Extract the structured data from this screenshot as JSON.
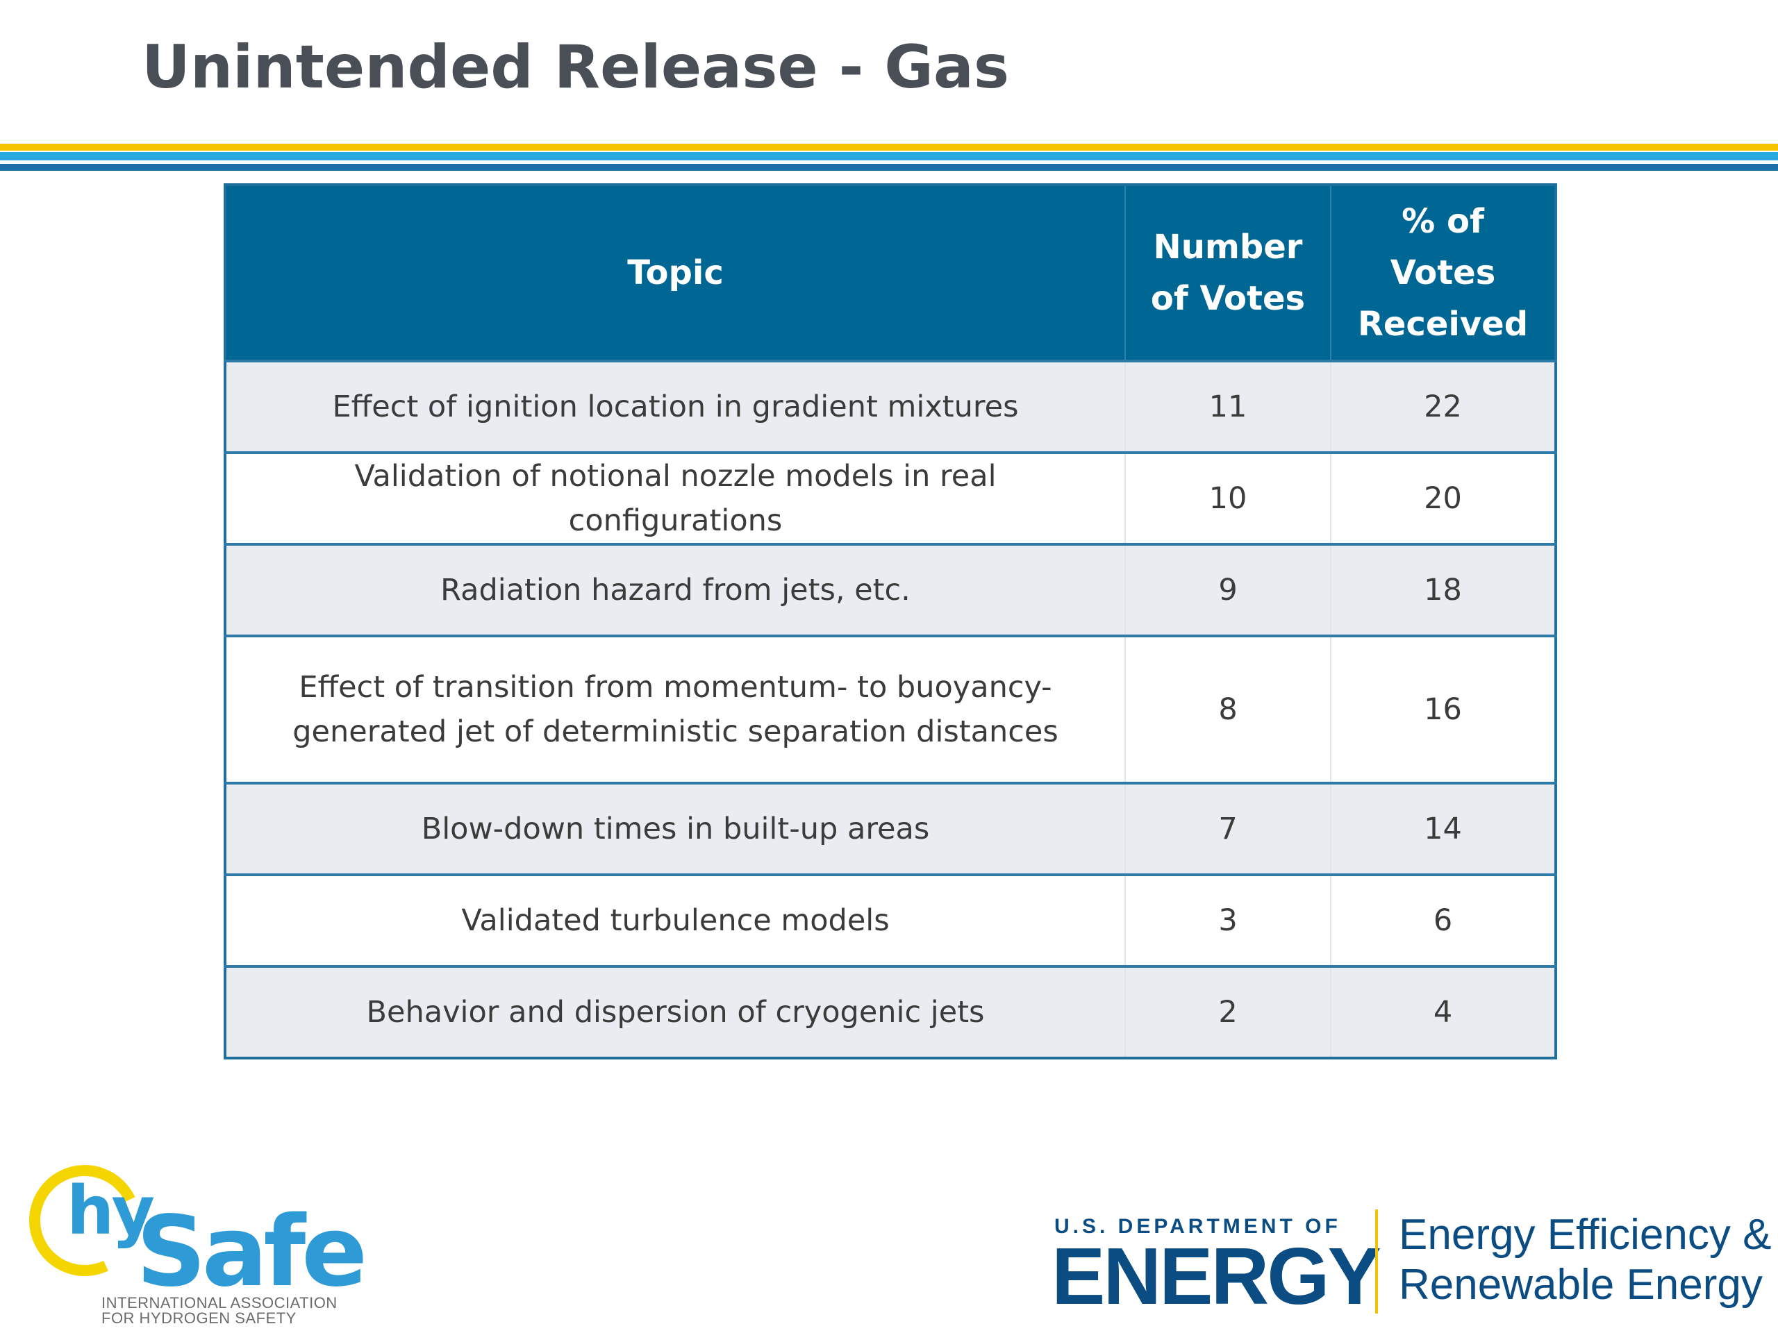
{
  "slide": {
    "title": "Unintended Release - Gas"
  },
  "table": {
    "headers": {
      "topic": "Topic",
      "number_line1": "Number",
      "number_line2": "of Votes",
      "percent_line1": "% of Votes",
      "percent_line2": "Received"
    },
    "rows": [
      {
        "topic": "Effect of ignition location in gradient mixtures",
        "votes": "11",
        "percent": "22"
      },
      {
        "topic": "Validation of notional nozzle models in real configurations",
        "votes": "10",
        "percent": "20"
      },
      {
        "topic": "Radiation hazard from jets, etc.",
        "votes": "9",
        "percent": "18"
      },
      {
        "topic_line1": "Effect of transition from momentum- to buoyancy-",
        "topic_line2": "generated jet of deterministic separation distances",
        "votes": "8",
        "percent": "16"
      },
      {
        "topic": "Blow-down times in built-up areas",
        "votes": "7",
        "percent": "14"
      },
      {
        "topic": "Validated turbulence models",
        "votes": "3",
        "percent": "6"
      },
      {
        "topic": "Behavior and dispersion of cryogenic jets",
        "votes": "2",
        "percent": "4"
      }
    ]
  },
  "logos": {
    "hysafe": {
      "hy": "hy",
      "safe": "Safe",
      "line1": "INTERNATIONAL ASSOCIATION",
      "line2": "FOR HYDROGEN SAFETY"
    },
    "doe": {
      "dept": "U.S. DEPARTMENT OF",
      "energy": "ENERGY",
      "eere_line1": "Energy Efficiency &",
      "eere_line2": "Renewable Energy"
    }
  },
  "colors": {
    "header_blue": "#006693",
    "row_shade": "#e9ecf0",
    "rule_yellow": "#f5c400",
    "rule_lightblue": "#29a9e0",
    "rule_darkblue": "#1d6fa8",
    "title_gray": "#4a4f57"
  }
}
